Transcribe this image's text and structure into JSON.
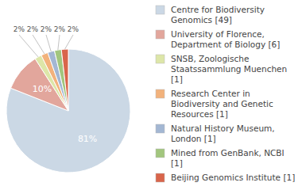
{
  "chart_data": {
    "type": "pie",
    "categories": [
      "Centre for Biodiversity Genomics [49]",
      "University of Florence, Department of Biology [6]",
      "SNSB, Zoologische Staatssammlung Muenchen [1]",
      "Research Center in Biodiversity and Genetic Resources [1]",
      "Natural History Museum, London [1]",
      "Mined from GenBank, NCBI [1]",
      "Beijing Genomics Institute [1]"
    ],
    "values": [
      81,
      10,
      1.8,
      1.8,
      1.8,
      1.8,
      1.8
    ],
    "value_labels": [
      "81%",
      "10%",
      "2%",
      "2%",
      "2%",
      "2%",
      "2%"
    ],
    "colors": [
      "#cbd8e5",
      "#e2a69c",
      "#dde6a8",
      "#f2b27c",
      "#a3b7d3",
      "#a2c67e",
      "#d9654b"
    ],
    "data_labels": true,
    "legend": "right"
  }
}
